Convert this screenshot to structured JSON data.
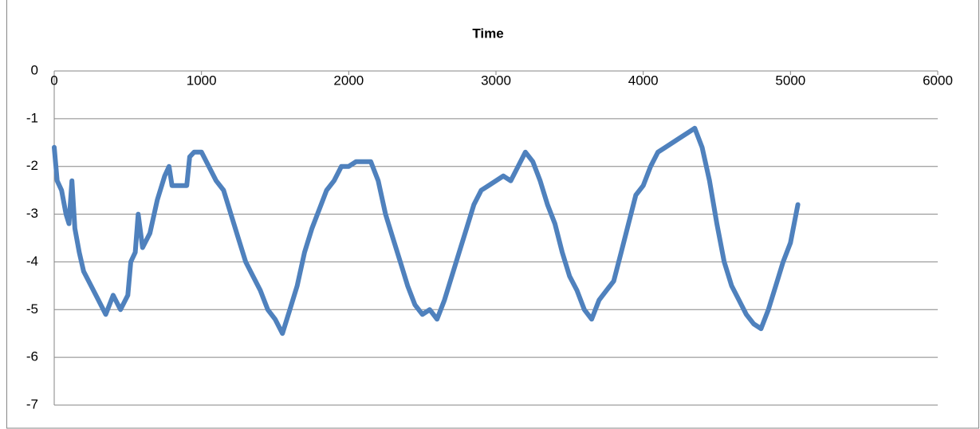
{
  "chart_data": {
    "type": "line",
    "title": "Time",
    "x": [
      0,
      20,
      50,
      80,
      100,
      120,
      140,
      170,
      200,
      250,
      300,
      350,
      400,
      450,
      500,
      520,
      550,
      570,
      600,
      650,
      700,
      750,
      780,
      800,
      900,
      920,
      950,
      1000,
      1050,
      1100,
      1150,
      1200,
      1250,
      1300,
      1350,
      1400,
      1450,
      1500,
      1550,
      1600,
      1650,
      1700,
      1750,
      1800,
      1850,
      1900,
      1950,
      2000,
      2050,
      2100,
      2150,
      2200,
      2250,
      2300,
      2350,
      2400,
      2450,
      2500,
      2550,
      2600,
      2650,
      2700,
      2750,
      2800,
      2850,
      2900,
      2950,
      3000,
      3050,
      3100,
      3150,
      3200,
      3250,
      3300,
      3350,
      3400,
      3450,
      3500,
      3550,
      3600,
      3650,
      3700,
      3750,
      3800,
      3850,
      3900,
      3950,
      4000,
      4050,
      4100,
      4150,
      4200,
      4250,
      4300,
      4350,
      4400,
      4450,
      4500,
      4550,
      4600,
      4650,
      4700,
      4750,
      4800,
      4850,
      4900,
      4950,
      5000,
      5050
    ],
    "series": [
      {
        "color": "#4f81bd",
        "values": [
          -1.6,
          -2.3,
          -2.5,
          -3.0,
          -3.2,
          -2.3,
          -3.3,
          -3.8,
          -4.2,
          -4.5,
          -4.8,
          -5.1,
          -4.7,
          -5.0,
          -4.7,
          -4.0,
          -3.8,
          -3.0,
          -3.7,
          -3.4,
          -2.7,
          -2.2,
          -2.0,
          -2.4,
          -2.4,
          -1.8,
          -1.7,
          -1.7,
          -2.0,
          -2.3,
          -2.5,
          -3.0,
          -3.5,
          -4.0,
          -4.3,
          -4.6,
          -5.0,
          -5.2,
          -5.5,
          -5.0,
          -4.5,
          -3.8,
          -3.3,
          -2.9,
          -2.5,
          -2.3,
          -2.0,
          -2.0,
          -1.9,
          -1.9,
          -1.9,
          -2.3,
          -3.0,
          -3.5,
          -4.0,
          -4.5,
          -4.9,
          -5.1,
          -5.0,
          -5.2,
          -4.8,
          -4.3,
          -3.8,
          -3.3,
          -2.8,
          -2.5,
          -2.4,
          -2.3,
          -2.2,
          -2.3,
          -2.0,
          -1.7,
          -1.9,
          -2.3,
          -2.8,
          -3.2,
          -3.8,
          -4.3,
          -4.6,
          -5.0,
          -5.2,
          -4.8,
          -4.6,
          -4.4,
          -3.8,
          -3.2,
          -2.6,
          -2.4,
          -2.0,
          -1.7,
          -1.6,
          -1.5,
          -1.4,
          -1.3,
          -1.2,
          -1.6,
          -2.3,
          -3.2,
          -4.0,
          -4.5,
          -4.8,
          -5.1,
          -5.3,
          -5.4,
          -5.0,
          -4.5,
          -4.0,
          -3.6,
          -2.8
        ]
      }
    ],
    "xlim": [
      0,
      6000
    ],
    "xticks": [
      0,
      1000,
      2000,
      3000,
      4000,
      5000,
      6000
    ],
    "ylim": [
      -7,
      0
    ],
    "yticks": [
      0,
      -1,
      -2,
      -3,
      -4,
      -5,
      -6,
      -7
    ],
    "grid": true
  }
}
